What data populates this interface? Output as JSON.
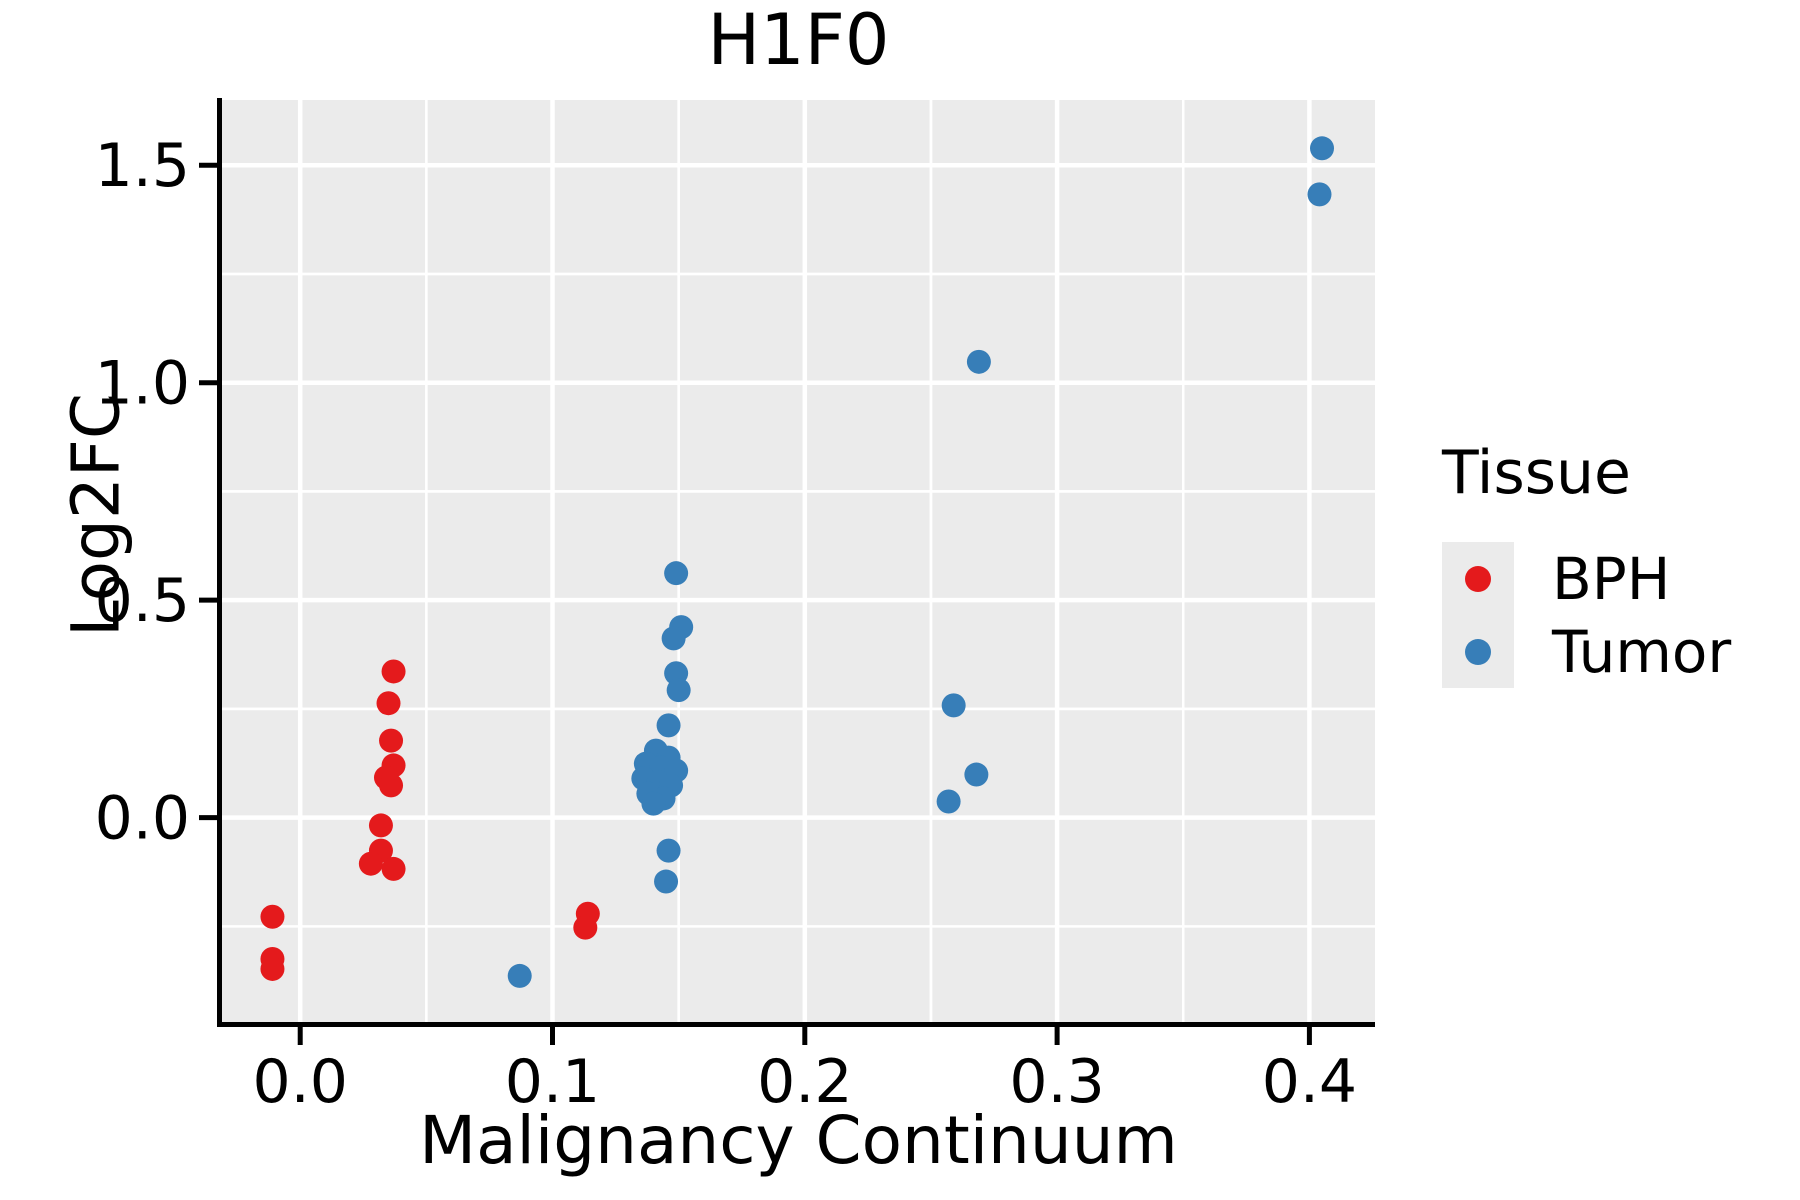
{
  "colors": {
    "figure_background": "#ffffff",
    "panel_background": "#ebebeb",
    "grid": "#ffffff",
    "axis_line": "#000000",
    "text": "#000000",
    "bph": "#e41a1c",
    "tumor": "#377eb8"
  },
  "chart_data": {
    "type": "scatter",
    "title": "H1F0",
    "xlabel": "Malignancy Continuum",
    "ylabel": "Log2FC",
    "xlim": [
      -0.031,
      0.426
    ],
    "ylim": [
      -0.47,
      1.65
    ],
    "x_ticks": [
      0.0,
      0.1,
      0.2,
      0.3,
      0.4
    ],
    "x_tick_labels": [
      "0.0",
      "0.1",
      "0.2",
      "0.3",
      "0.4"
    ],
    "y_ticks": [
      0.0,
      0.5,
      1.0,
      1.5
    ],
    "y_tick_labels": [
      "0.0",
      "0.5",
      "1.0",
      "1.5"
    ],
    "grid": "white major and minor gridlines on gray panel",
    "legend": {
      "title": "Tissue",
      "position": "right"
    },
    "series": [
      {
        "name": "BPH",
        "color": "#e41a1c",
        "points": [
          [
            -0.011,
            -0.228
          ],
          [
            -0.011,
            -0.325
          ],
          [
            -0.011,
            -0.348
          ],
          [
            0.037,
            0.336
          ],
          [
            0.035,
            0.263
          ],
          [
            0.036,
            0.177
          ],
          [
            0.037,
            0.12
          ],
          [
            0.034,
            0.092
          ],
          [
            0.036,
            0.074
          ],
          [
            0.032,
            -0.018
          ],
          [
            0.032,
            -0.076
          ],
          [
            0.028,
            -0.106
          ],
          [
            0.037,
            -0.118
          ],
          [
            0.114,
            -0.221
          ],
          [
            0.113,
            -0.253
          ]
        ]
      },
      {
        "name": "Tumor",
        "color": "#377eb8",
        "points": [
          [
            0.087,
            -0.364
          ],
          [
            0.149,
            0.562
          ],
          [
            0.151,
            0.438
          ],
          [
            0.148,
            0.412
          ],
          [
            0.149,
            0.332
          ],
          [
            0.15,
            0.293
          ],
          [
            0.146,
            0.212
          ],
          [
            0.141,
            0.154
          ],
          [
            0.146,
            0.138
          ],
          [
            0.137,
            0.124
          ],
          [
            0.143,
            0.115
          ],
          [
            0.149,
            0.108
          ],
          [
            0.136,
            0.09
          ],
          [
            0.142,
            0.081
          ],
          [
            0.147,
            0.074
          ],
          [
            0.138,
            0.055
          ],
          [
            0.144,
            0.044
          ],
          [
            0.14,
            0.032
          ],
          [
            0.146,
            -0.076
          ],
          [
            0.145,
            -0.147
          ],
          [
            0.259,
            0.258
          ],
          [
            0.268,
            0.099
          ],
          [
            0.257,
            0.037
          ],
          [
            0.269,
            1.048
          ],
          [
            0.405,
            1.539
          ],
          [
            0.404,
            1.433
          ]
        ]
      }
    ]
  }
}
